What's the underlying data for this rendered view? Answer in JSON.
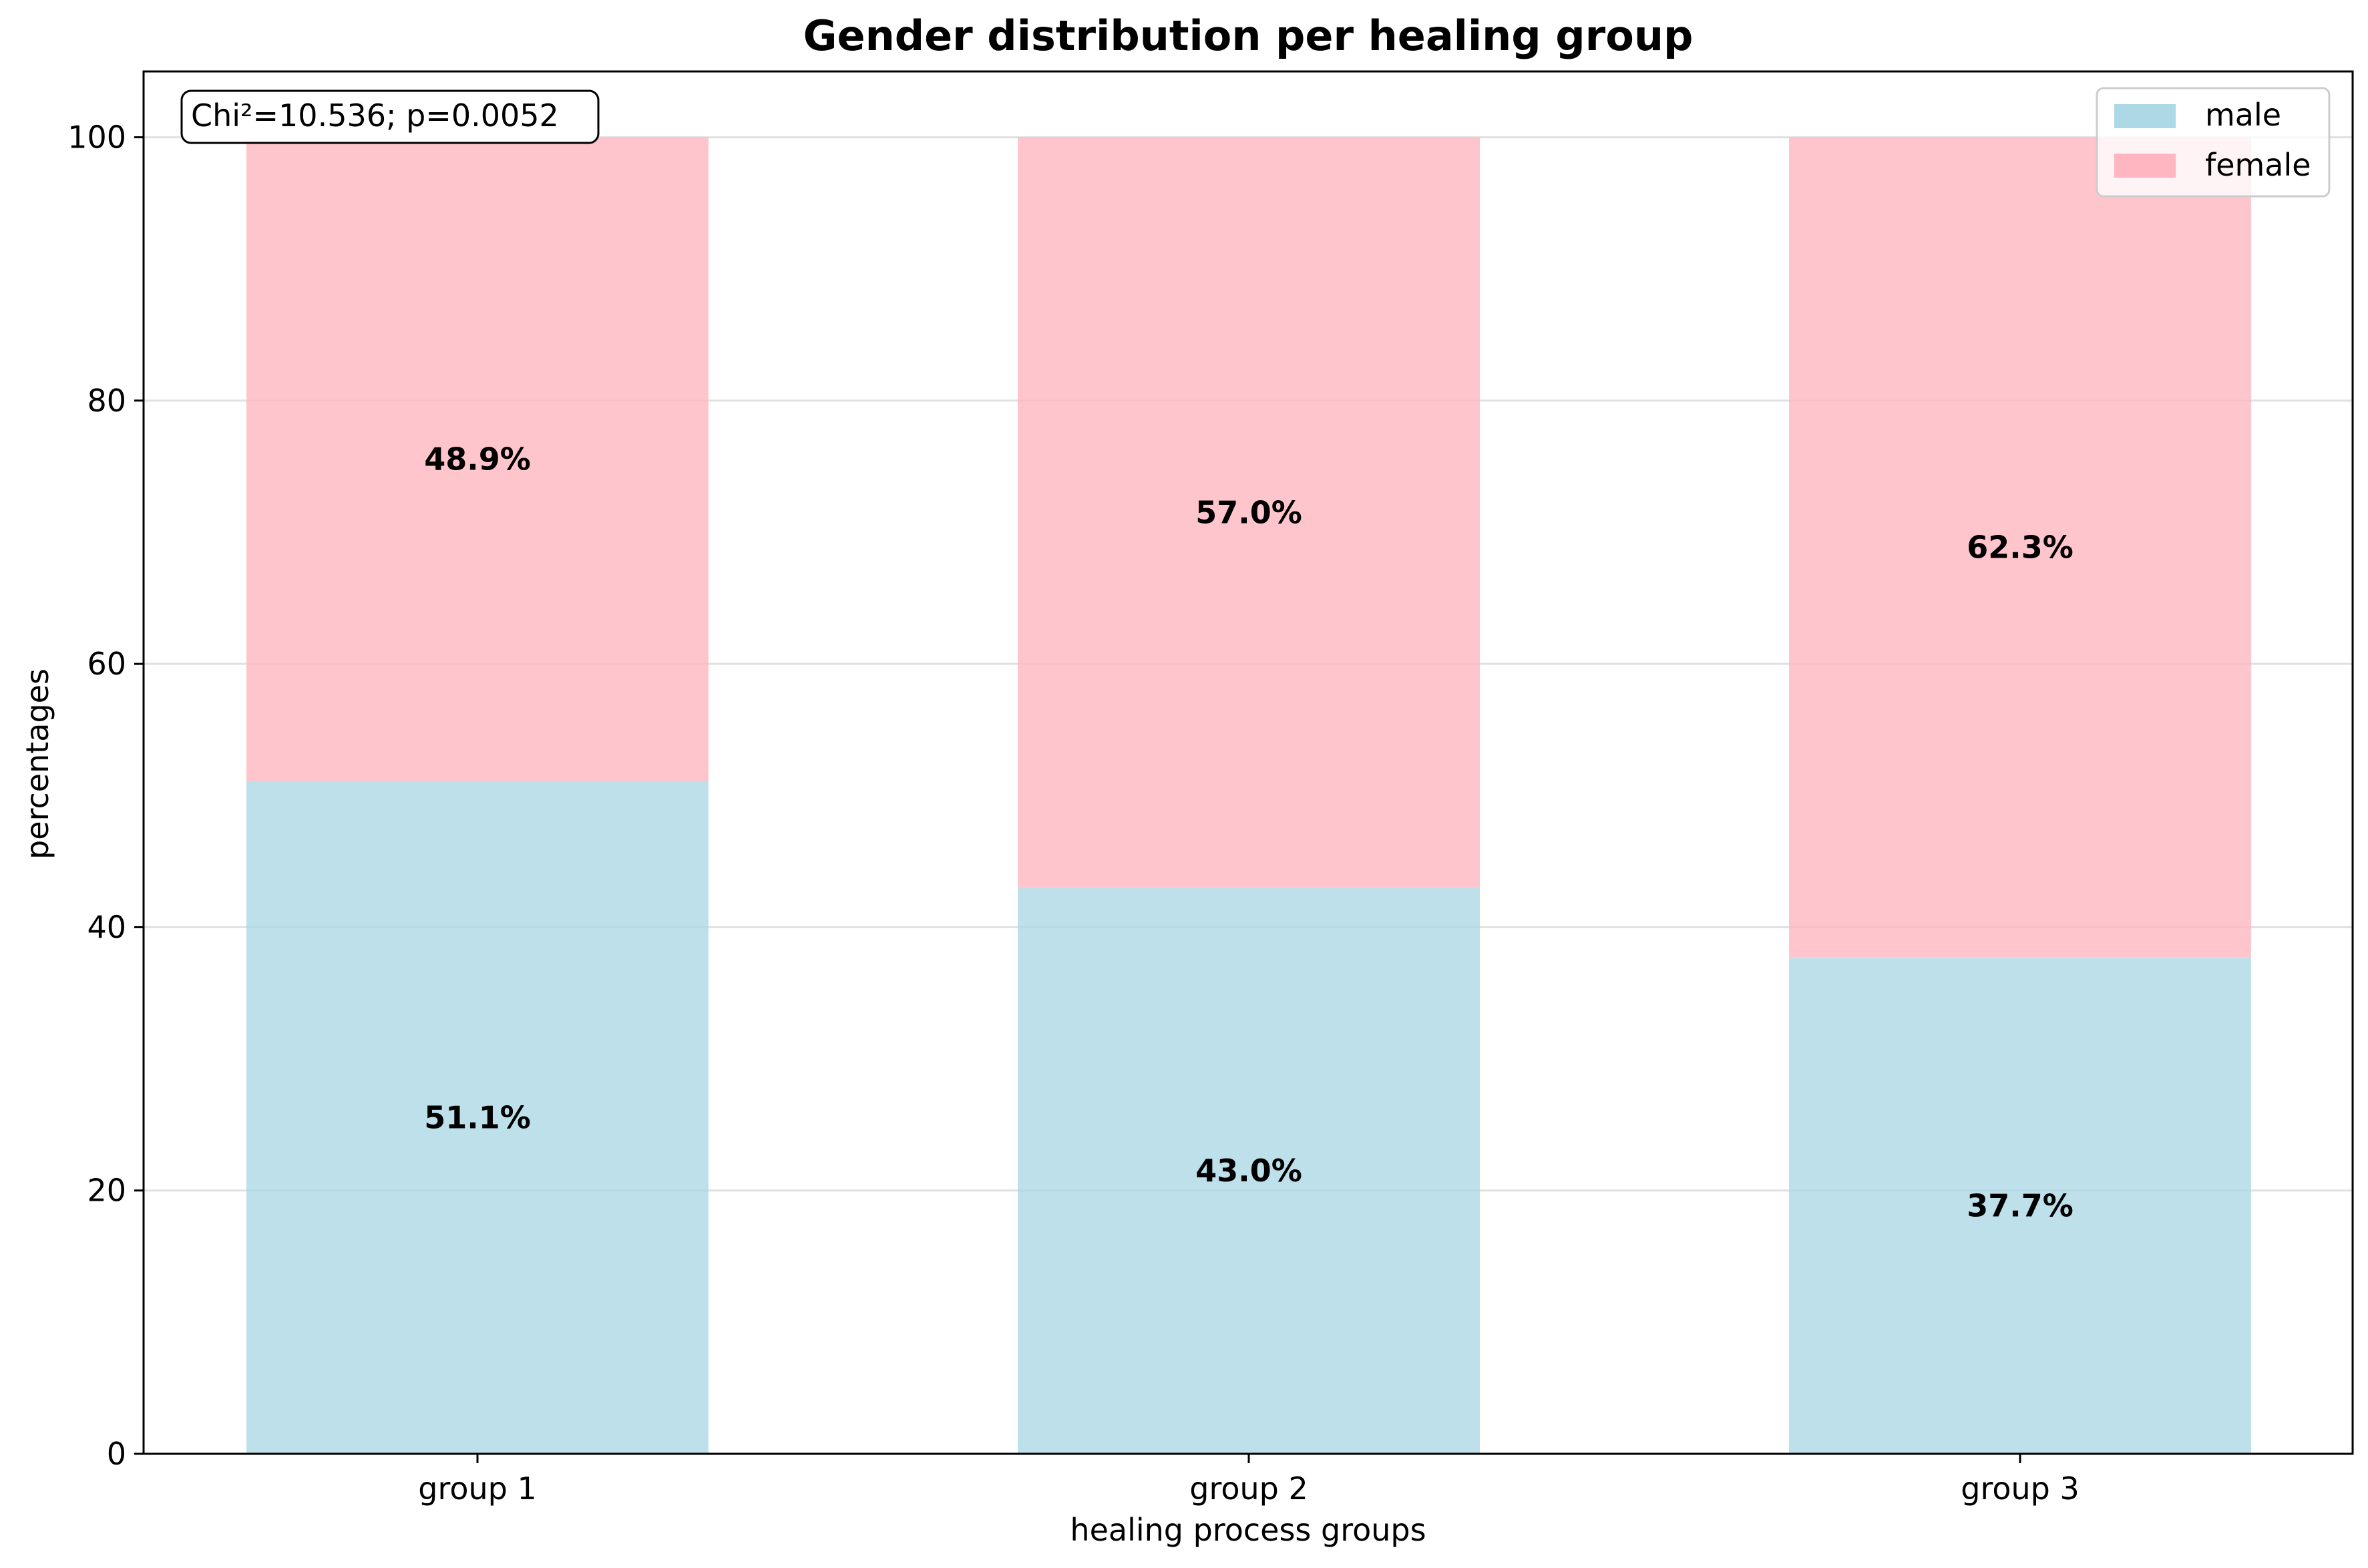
{
  "chart_data": {
    "type": "bar",
    "stacked": true,
    "title": "Gender distribution per healing group",
    "xlabel": "healing process groups",
    "ylabel": "percentages",
    "ylim": [
      0,
      105
    ],
    "yticks": [
      0,
      20,
      40,
      60,
      80,
      100
    ],
    "grid": "horizontal",
    "legend_position": "top-right",
    "categories": [
      "group 1",
      "group 2",
      "group 3"
    ],
    "series": [
      {
        "name": "male",
        "color": "#add8e6",
        "values": [
          51.1,
          43.0,
          37.7
        ],
        "labels": [
          "51.1%",
          "43.0%",
          "37.7%"
        ]
      },
      {
        "name": "female",
        "color": "#ffb6c1",
        "values": [
          48.9,
          57.0,
          62.3
        ],
        "labels": [
          "48.9%",
          "57.0%",
          "62.3%"
        ]
      }
    ],
    "annotation": "Chi²=10.536; p=0.0052"
  }
}
